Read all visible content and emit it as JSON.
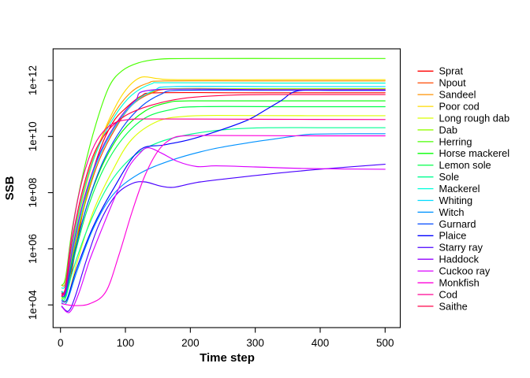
{
  "chart_data": {
    "type": "line",
    "title": "",
    "xlabel": "Time step",
    "ylabel": "SSB",
    "x_ticks": [
      0,
      100,
      200,
      300,
      400,
      500
    ],
    "y_ticks": [
      {
        "label": "1e+04",
        "value": 10000.0
      },
      {
        "label": "1e+06",
        "value": 1000000.0
      },
      {
        "label": "1e+08",
        "value": 100000000.0
      },
      {
        "label": "1e+10",
        "value": 10000000000.0
      },
      {
        "label": "1e+12",
        "value": 1000000000000.0
      }
    ],
    "x_range_shown": [
      0,
      500
    ],
    "y_scale": "log10",
    "grid": false,
    "legend_position": "right",
    "axis_color": "#000000",
    "background_color": "#ffffff",
    "series": [
      {
        "name": "Sprat",
        "color": "#FF0000",
        "points": [
          [
            2,
            30000.0
          ],
          [
            8,
            22000.0
          ],
          [
            15,
            80000.0
          ],
          [
            25,
            1500000.0
          ],
          [
            40,
            80000000.0
          ],
          [
            60,
            3000000000.0
          ],
          [
            80,
            30000000000.0
          ],
          [
            100,
            100000000000.0
          ],
          [
            125,
            280000000000.0
          ],
          [
            150,
            360000000000.0
          ],
          [
            300,
            360000000000.0
          ],
          [
            500,
            360000000000.0
          ]
        ]
      },
      {
        "name": "Npout",
        "color": "#FF4900",
        "points": [
          [
            2,
            25000.0
          ],
          [
            8,
            30000.0
          ],
          [
            20,
            800000.0
          ],
          [
            40,
            60000000.0
          ],
          [
            60,
            1500000000.0
          ],
          [
            85,
            20000000000.0
          ],
          [
            110,
            130000000000.0
          ],
          [
            140,
            350000000000.0
          ],
          [
            175,
            500000000000.0
          ],
          [
            300,
            500000000000.0
          ],
          [
            500,
            500000000000.0
          ]
        ]
      },
      {
        "name": "Sandeel",
        "color": "#FF9200",
        "points": [
          [
            2,
            50000.0
          ],
          [
            8,
            70000.0
          ],
          [
            20,
            3000000.0
          ],
          [
            40,
            300000000.0
          ],
          [
            60,
            6000000000.0
          ],
          [
            85,
            80000000000.0
          ],
          [
            110,
            400000000000.0
          ],
          [
            135,
            800000000000.0
          ],
          [
            160,
            950000000000.0
          ],
          [
            300,
            950000000000.0
          ],
          [
            500,
            950000000000.0
          ]
        ]
      },
      {
        "name": "Poor cod",
        "color": "#FFDB00",
        "points": [
          [
            2,
            30000.0
          ],
          [
            8,
            40000.0
          ],
          [
            20,
            2000000.0
          ],
          [
            40,
            200000000.0
          ],
          [
            60,
            6000000000.0
          ],
          [
            85,
            120000000000.0
          ],
          [
            105,
            600000000000.0
          ],
          [
            125,
            1300000000000.0
          ],
          [
            150,
            1150000000000.0
          ],
          [
            180,
            1050000000000.0
          ],
          [
            350,
            1050000000000.0
          ],
          [
            500,
            1050000000000.0
          ]
        ]
      },
      {
        "name": "Long rough dab",
        "color": "#DBFF00",
        "points": [
          [
            2,
            18000.0
          ],
          [
            10,
            15000.0
          ],
          [
            25,
            300000.0
          ],
          [
            50,
            20000000.0
          ],
          [
            80,
            600000000.0
          ],
          [
            110,
            8000000000.0
          ],
          [
            150,
            35000000000.0
          ],
          [
            190,
            52000000000.0
          ],
          [
            240,
            56000000000.0
          ],
          [
            380,
            55000000000.0
          ],
          [
            500,
            55000000000.0
          ]
        ]
      },
      {
        "name": "Dab",
        "color": "#92FF00",
        "points": [
          [
            2,
            20000.0
          ],
          [
            8,
            25000.0
          ],
          [
            20,
            1000000.0
          ],
          [
            40,
            70000000.0
          ],
          [
            60,
            2000000000.0
          ],
          [
            85,
            25000000000.0
          ],
          [
            110,
            150000000000.0
          ],
          [
            140,
            380000000000.0
          ],
          [
            170,
            500000000000.0
          ],
          [
            320,
            500000000000.0
          ],
          [
            500,
            500000000000.0
          ]
        ]
      },
      {
        "name": "Herring",
        "color": "#49FF00",
        "points": [
          [
            2,
            50000.0
          ],
          [
            8,
            100000.0
          ],
          [
            18,
            5000000.0
          ],
          [
            35,
            500000000.0
          ],
          [
            55,
            30000000000.0
          ],
          [
            75,
            600000000000.0
          ],
          [
            95,
            2200000000000.0
          ],
          [
            120,
            4200000000000.0
          ],
          [
            150,
            5600000000000.0
          ],
          [
            200,
            6000000000000.0
          ],
          [
            350,
            6000000000000.0
          ],
          [
            500,
            6000000000000.0
          ]
        ]
      },
      {
        "name": "Horse mackerel",
        "color": "#00FF00",
        "points": [
          [
            2,
            30000.0
          ],
          [
            8,
            35000.0
          ],
          [
            20,
            600000.0
          ],
          [
            40,
            30000000.0
          ],
          [
            65,
            1000000000.0
          ],
          [
            95,
            15000000000.0
          ],
          [
            130,
            80000000000.0
          ],
          [
            165,
            160000000000.0
          ],
          [
            200,
            185000000000.0
          ],
          [
            350,
            185000000000.0
          ],
          [
            500,
            185000000000.0
          ]
        ]
      },
      {
        "name": "Lemon sole",
        "color": "#00FF49",
        "points": [
          [
            2,
            20000.0
          ],
          [
            8,
            22000.0
          ],
          [
            20,
            400000.0
          ],
          [
            40,
            20000000.0
          ],
          [
            65,
            600000000.0
          ],
          [
            95,
            8000000000.0
          ],
          [
            130,
            45000000000.0
          ],
          [
            170,
            90000000000.0
          ],
          [
            210,
            115000000000.0
          ],
          [
            360,
            115000000000.0
          ],
          [
            500,
            115000000000.0
          ]
        ]
      },
      {
        "name": "Sole",
        "color": "#00FF92",
        "points": [
          [
            2,
            16000.0
          ],
          [
            8,
            18000.0
          ],
          [
            20,
            200000.0
          ],
          [
            45,
            8000000.0
          ],
          [
            75,
            200000000.0
          ],
          [
            110,
            1800000000.0
          ],
          [
            150,
            6000000000.0
          ],
          [
            200,
            12000000000.0
          ],
          [
            260,
            18000000000.0
          ],
          [
            320,
            20500000000.0
          ],
          [
            430,
            20500000000.0
          ],
          [
            500,
            20500000000.0
          ]
        ]
      },
      {
        "name": "Mackerel",
        "color": "#00FFDB",
        "points": [
          [
            2,
            40000.0
          ],
          [
            8,
            60000.0
          ],
          [
            20,
            2500000.0
          ],
          [
            40,
            250000000.0
          ],
          [
            60,
            5000000000.0
          ],
          [
            85,
            60000000000.0
          ],
          [
            110,
            300000000000.0
          ],
          [
            140,
            750000000000.0
          ],
          [
            165,
            820000000000.0
          ],
          [
            330,
            800000000000.0
          ],
          [
            500,
            800000000000.0
          ]
        ]
      },
      {
        "name": "Whiting",
        "color": "#00DBFF",
        "points": [
          [
            2,
            30000.0
          ],
          [
            8,
            40000.0
          ],
          [
            20,
            1200000.0
          ],
          [
            40,
            100000000.0
          ],
          [
            62,
            2500000000.0
          ],
          [
            88,
            30000000000.0
          ],
          [
            115,
            170000000000.0
          ],
          [
            145,
            450000000000.0
          ],
          [
            175,
            600000000000.0
          ],
          [
            340,
            600000000000.0
          ],
          [
            500,
            600000000000.0
          ]
        ]
      },
      {
        "name": "Witch",
        "color": "#0092FF",
        "points": [
          [
            2,
            12000.0
          ],
          [
            10,
            13000.0
          ],
          [
            25,
            150000.0
          ],
          [
            50,
            5000000.0
          ],
          [
            80,
            80000000.0
          ],
          [
            120,
            450000000.0
          ],
          [
            170,
            1400000000.0
          ],
          [
            230,
            3400000000.0
          ],
          [
            290,
            6000000000.0
          ],
          [
            350,
            9500000000.0
          ],
          [
            385,
            12000000000.0
          ],
          [
            450,
            12500000000.0
          ],
          [
            500,
            12500000000.0
          ]
        ]
      },
      {
        "name": "Gurnard",
        "color": "#0049FF",
        "points": [
          [
            2,
            22000.0
          ],
          [
            8,
            26000.0
          ],
          [
            20,
            500000.0
          ],
          [
            40,
            30000000.0
          ],
          [
            65,
            1200000000.0
          ],
          [
            95,
            20000000000.0
          ],
          [
            125,
            120000000000.0
          ],
          [
            155,
            320000000000.0
          ],
          [
            185,
            440000000000.0
          ],
          [
            340,
            440000000000.0
          ],
          [
            500,
            440000000000.0
          ]
        ]
      },
      {
        "name": "Plaice",
        "color": "#0000FF",
        "points": [
          [
            2,
            14000.0
          ],
          [
            10,
            16000.0
          ],
          [
            25,
            200000.0
          ],
          [
            50,
            6000000.0
          ],
          [
            80,
            120000000.0
          ],
          [
            120,
            3000000000.0
          ],
          [
            160,
            5000000000.0
          ],
          [
            200,
            7800000000.0
          ],
          [
            250,
            18000000000.0
          ],
          [
            290,
            40000000000.0
          ],
          [
            315,
            86000000000.0
          ],
          [
            340,
            190000000000.0
          ],
          [
            365,
            420000000000.0
          ],
          [
            420,
            440000000000.0
          ],
          [
            500,
            440000000000.0
          ]
        ]
      },
      {
        "name": "Starry ray",
        "color": "#4900FF",
        "points": [
          [
            2,
            9000.0
          ],
          [
            12,
            6000.0
          ],
          [
            22,
            18000.0
          ],
          [
            40,
            400000.0
          ],
          [
            60,
            8000000.0
          ],
          [
            85,
            80000000.0
          ],
          [
            110,
            210000000.0
          ],
          [
            130,
            240000000.0
          ],
          [
            155,
            170000000.0
          ],
          [
            175,
            155000000.0
          ],
          [
            210,
            230000000.0
          ],
          [
            260,
            320000000.0
          ],
          [
            340,
            510000000.0
          ],
          [
            420,
            740000000.0
          ],
          [
            500,
            1020000000.0
          ]
        ]
      },
      {
        "name": "Haddock",
        "color": "#9200FF",
        "points": [
          [
            2,
            26000.0
          ],
          [
            8,
            32000.0
          ],
          [
            20,
            1500000.0
          ],
          [
            40,
            120000000.0
          ],
          [
            62,
            3000000000.0
          ],
          [
            88,
            35000000000.0
          ],
          [
            115,
            190000000000.0
          ],
          [
            145,
            460000000000.0
          ],
          [
            330,
            460000000000.0
          ],
          [
            500,
            460000000000.0
          ]
        ]
      },
      {
        "name": "Cuckoo ray",
        "color": "#DB00FF",
        "points": [
          [
            2,
            8500.0
          ],
          [
            14,
            5500.0
          ],
          [
            28,
            25000.0
          ],
          [
            45,
            400000.0
          ],
          [
            65,
            6000000.0
          ],
          [
            85,
            80000000.0
          ],
          [
            105,
            800000000.0
          ],
          [
            122,
            2500000000.0
          ],
          [
            135,
            4000000000.0
          ],
          [
            155,
            2600000000.0
          ],
          [
            180,
            1300000000.0
          ],
          [
            210,
            850000000.0
          ],
          [
            240,
            900000000.0
          ],
          [
            300,
            820000000.0
          ],
          [
            380,
            720000000.0
          ],
          [
            500,
            680000000.0
          ]
        ]
      },
      {
        "name": "Monkfish",
        "color": "#FF00DB",
        "points": [
          [
            2,
            11000.0
          ],
          [
            20,
            9500.0
          ],
          [
            45,
            11000.0
          ],
          [
            70,
            30000.0
          ],
          [
            90,
            600000.0
          ],
          [
            110,
            20000000.0
          ],
          [
            130,
            400000000.0
          ],
          [
            150,
            3000000000.0
          ],
          [
            170,
            8000000000.0
          ],
          [
            190,
            10500000000.0
          ],
          [
            240,
            10800000000.0
          ],
          [
            400,
            10500000000.0
          ],
          [
            500,
            10500000000.0
          ]
        ]
      },
      {
        "name": "Cod",
        "color": "#FF0092",
        "points": [
          [
            2,
            20000.0
          ],
          [
            7,
            35000.0
          ],
          [
            14,
            800000.0
          ],
          [
            22,
            15000000.0
          ],
          [
            32,
            200000000.0
          ],
          [
            45,
            2000000000.0
          ],
          [
            60,
            10000000000.0
          ],
          [
            80,
            28000000000.0
          ],
          [
            105,
            40000000000.0
          ],
          [
            150,
            42000000000.0
          ],
          [
            320,
            41000000000.0
          ],
          [
            500,
            40000000000.0
          ]
        ]
      },
      {
        "name": "Saithe",
        "color": "#FF0049",
        "points": [
          [
            2,
            22000.0
          ],
          [
            8,
            45000.0
          ],
          [
            18,
            2000000.0
          ],
          [
            32,
            80000000.0
          ],
          [
            50,
            2000000000.0
          ],
          [
            72,
            15000000000.0
          ],
          [
            100,
            55000000000.0
          ],
          [
            140,
            130000000000.0
          ],
          [
            190,
            230000000000.0
          ],
          [
            250,
            290000000000.0
          ],
          [
            320,
            310000000000.0
          ],
          [
            500,
            310000000000.0
          ]
        ]
      }
    ]
  }
}
